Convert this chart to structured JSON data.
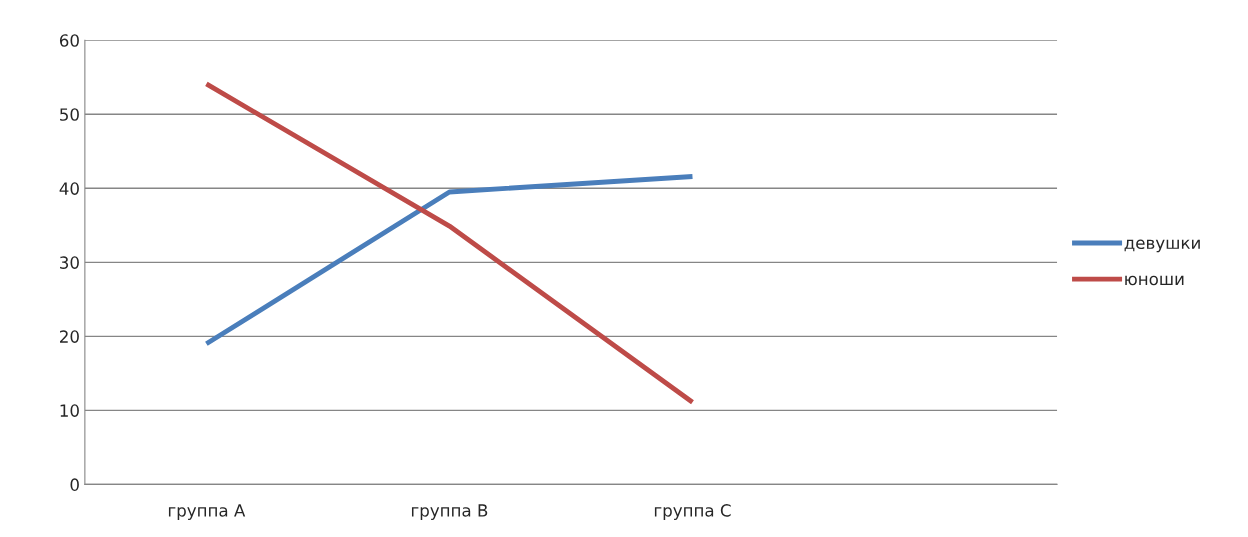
{
  "chart_data": {
    "type": "line",
    "categories": [
      "группа A",
      "группа B",
      "группа C",
      null
    ],
    "series": [
      {
        "name": "девушки",
        "color": "#4a7ebb",
        "values": [
          19,
          39.5,
          41.6,
          null
        ]
      },
      {
        "name": "юноши",
        "color": "#be4b48",
        "values": [
          54.1,
          34.9,
          11.1,
          null
        ]
      }
    ],
    "ylim": [
      0,
      60
    ],
    "yticks": [
      0,
      10,
      20,
      30,
      40,
      50,
      60
    ],
    "grid": "y",
    "legend": "right",
    "marker": "none",
    "line_style": "solid"
  }
}
